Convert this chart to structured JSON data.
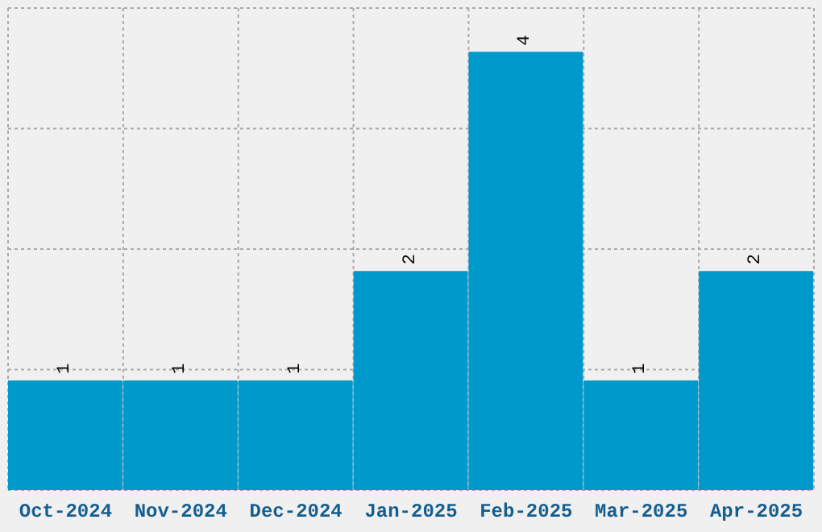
{
  "chart_data": {
    "type": "bar",
    "categories": [
      "Oct-2024",
      "Nov-2024",
      "Dec-2024",
      "Jan-2025",
      "Feb-2025",
      "Mar-2025",
      "Apr-2025"
    ],
    "values": [
      1,
      1,
      1,
      2,
      4,
      1,
      2
    ],
    "color": "#0099cc",
    "ylim": [
      0,
      4.4
    ],
    "yticks": [
      {
        "value": 0,
        "label": null
      },
      {
        "value": 1.1,
        "label": null
      },
      {
        "value": 2.2,
        "label": null
      },
      {
        "value": 3.3,
        "label": null
      },
      {
        "value": 4.4,
        "label": null
      }
    ],
    "grid": true,
    "tick_labels": "x",
    "data_labels": true
  }
}
